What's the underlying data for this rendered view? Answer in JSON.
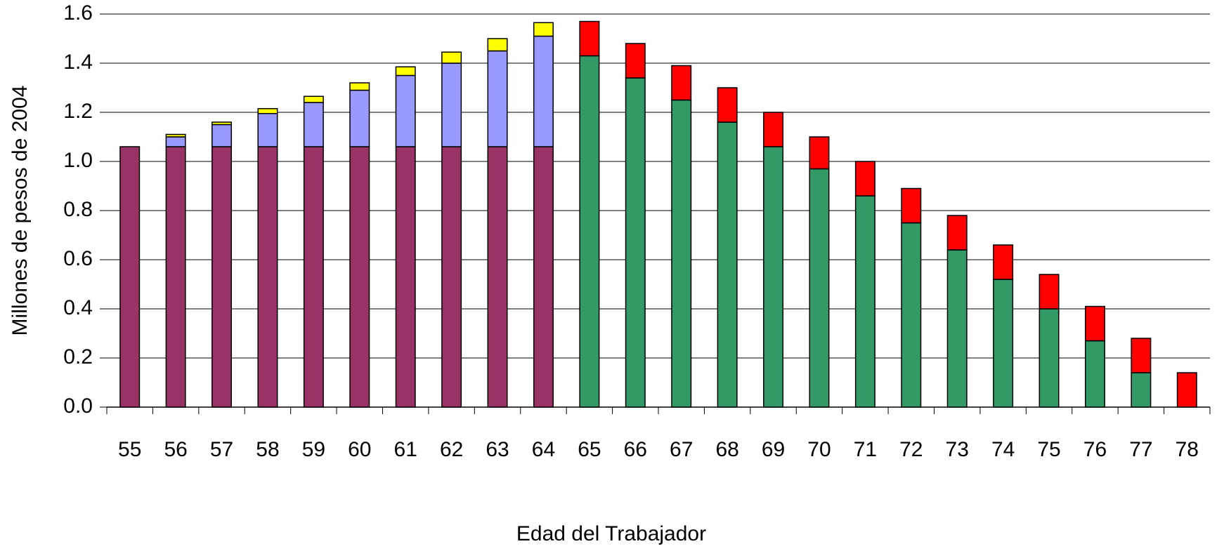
{
  "chart_data": {
    "type": "stacked_bar",
    "x_label": "Edad del Trabajador",
    "y_label": "Millones de pesos de 2004",
    "categories": [
      "55",
      "56",
      "57",
      "58",
      "59",
      "60",
      "61",
      "62",
      "63",
      "64",
      "65",
      "66",
      "67",
      "68",
      "69",
      "70",
      "71",
      "72",
      "73",
      "74",
      "75",
      "76",
      "77",
      "78"
    ],
    "series": [
      {
        "color": "#993366",
        "values": [
          1.06,
          1.06,
          1.06,
          1.06,
          1.06,
          1.06,
          1.06,
          1.06,
          1.06,
          1.06,
          null,
          null,
          null,
          null,
          null,
          null,
          null,
          null,
          null,
          null,
          null,
          null,
          null,
          null
        ]
      },
      {
        "color": "#9999ff",
        "values": [
          null,
          0.04,
          0.09,
          0.135,
          0.18,
          0.23,
          0.29,
          0.34,
          0.39,
          0.45,
          null,
          null,
          null,
          null,
          null,
          null,
          null,
          null,
          null,
          null,
          null,
          null,
          null,
          null
        ]
      },
      {
        "color": "#ffff00",
        "values": [
          null,
          0.01,
          0.01,
          0.02,
          0.025,
          0.03,
          0.035,
          0.045,
          0.05,
          0.055,
          null,
          null,
          null,
          null,
          null,
          null,
          null,
          null,
          null,
          null,
          null,
          null,
          null,
          null
        ]
      },
      {
        "color": "#339966",
        "values": [
          null,
          null,
          null,
          null,
          null,
          null,
          null,
          null,
          null,
          null,
          1.43,
          1.34,
          1.25,
          1.16,
          1.06,
          0.97,
          0.86,
          0.75,
          0.64,
          0.52,
          0.4,
          0.27,
          0.14,
          null
        ]
      },
      {
        "color": "#ff0000",
        "values": [
          null,
          null,
          null,
          null,
          null,
          null,
          null,
          null,
          null,
          null,
          0.14,
          0.14,
          0.14,
          0.14,
          0.14,
          0.13,
          0.14,
          0.14,
          0.14,
          0.14,
          0.14,
          0.14,
          0.14,
          0.14
        ]
      }
    ],
    "ylim": [
      0,
      1.6
    ],
    "yticks": [
      {
        "value": 0,
        "label": "0.0"
      },
      0.2,
      0.4,
      0.6,
      0.8,
      {
        "value": 1,
        "label": "1.0"
      },
      1.2,
      1.4,
      1.6
    ],
    "grid": true
  }
}
